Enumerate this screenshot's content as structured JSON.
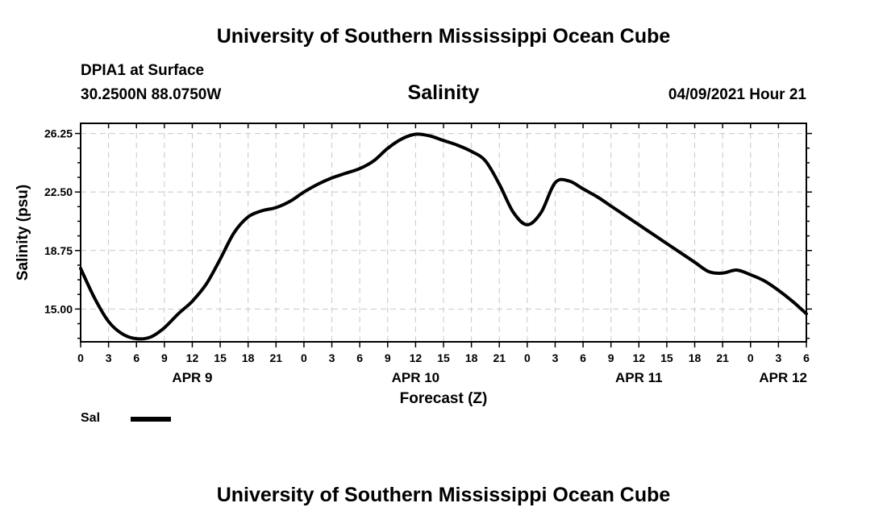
{
  "page": {
    "title_top": "University of Southern Mississippi Ocean Cube",
    "title_bottom": "University of Southern Mississippi Ocean Cube",
    "station": "DPIA1 at Surface",
    "coords": "30.2500N  88.0750W",
    "datetime": "04/09/2021 Hour 21"
  },
  "chart_data": {
    "type": "line",
    "title": "Salinity",
    "xlabel": "Forecast (Z)",
    "ylabel": "Salinity (psu)",
    "xlim": [
      0,
      78
    ],
    "ylim": [
      12.9,
      26.9
    ],
    "yticks": [
      15.0,
      18.75,
      22.5,
      26.25
    ],
    "ytick_labels": [
      "15.00",
      "18.75",
      "22.50",
      "26.25"
    ],
    "xticks": [
      0,
      3,
      6,
      9,
      12,
      15,
      18,
      21,
      24,
      27,
      30,
      33,
      36,
      39,
      42,
      45,
      48,
      51,
      54,
      57,
      60,
      63,
      66,
      69,
      72,
      75,
      78
    ],
    "xtick_labels": [
      "0",
      "3",
      "6",
      "9",
      "12",
      "15",
      "18",
      "21",
      "0",
      "3",
      "6",
      "9",
      "12",
      "15",
      "18",
      "21",
      "0",
      "3",
      "6",
      "9",
      "12",
      "15",
      "18",
      "21",
      "0",
      "3",
      "6"
    ],
    "day_labels": [
      {
        "x": 12,
        "label": "APR 9"
      },
      {
        "x": 36,
        "label": "APR 10"
      },
      {
        "x": 60,
        "label": "APR 11"
      },
      {
        "x": 75.5,
        "label": "APR 12"
      }
    ],
    "grid": true,
    "legend": "bottom-left",
    "series": [
      {
        "name": "Sal",
        "x": [
          0,
          1.5,
          3,
          4.5,
          6,
          7.5,
          9,
          10.5,
          12,
          13.5,
          15,
          16.5,
          18,
          19.5,
          21,
          22.5,
          24,
          25.5,
          27,
          28.5,
          30,
          31.5,
          33,
          34.5,
          36,
          37.5,
          39,
          40.5,
          42,
          43.5,
          45,
          46.5,
          48,
          49.5,
          51,
          52.5,
          54,
          55.5,
          57,
          58.5,
          60,
          61.5,
          63,
          64.5,
          66,
          67.5,
          69,
          70.5,
          72,
          73.5,
          75,
          76.5,
          78
        ],
        "y": [
          17.6,
          15.7,
          14.2,
          13.4,
          13.1,
          13.2,
          13.8,
          14.7,
          15.5,
          16.6,
          18.2,
          19.9,
          20.9,
          21.3,
          21.5,
          21.9,
          22.5,
          23.0,
          23.4,
          23.7,
          24.0,
          24.5,
          25.3,
          25.9,
          26.2,
          26.1,
          25.8,
          25.5,
          25.1,
          24.5,
          23.0,
          21.2,
          20.4,
          21.2,
          23.1,
          23.2,
          22.7,
          22.2,
          21.6,
          21.0,
          20.4,
          19.8,
          19.2,
          18.6,
          18.0,
          17.4,
          17.3,
          17.5,
          17.2,
          16.8,
          16.2,
          15.5,
          14.7
        ]
      }
    ]
  }
}
